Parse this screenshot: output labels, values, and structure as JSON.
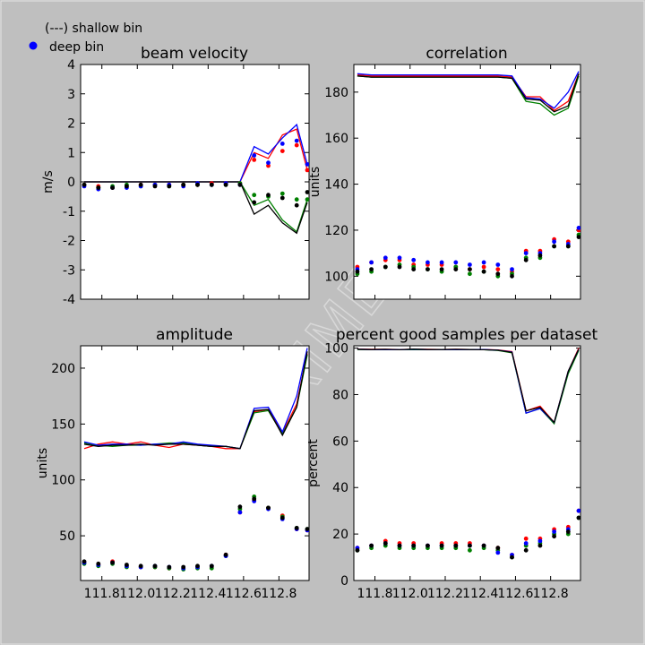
{
  "legend": {
    "shallow_label": "(---) shallow bin",
    "deep_label": "deep bin",
    "deep_marker_color": "#0000ff"
  },
  "watermark": "EXPERIMENTAL",
  "colors": {
    "beam1": "#ff0000",
    "beam2": "#008000",
    "beam3": "#0000ff",
    "beam4": "#000000"
  },
  "x_tick_labels": [
    "111.8",
    "112.0",
    "112.2",
    "112.4",
    "112.6",
    "112.8"
  ],
  "chart_data": [
    {
      "type": "line",
      "title": "beam velocity",
      "ylabel": "m/s",
      "xlim": [
        111.68,
        112.97
      ],
      "ylim": [
        -4,
        4
      ],
      "yticks": [
        -4,
        -3,
        -2,
        -1,
        0,
        1,
        2,
        3,
        4
      ],
      "xticks": [
        111.8,
        112.0,
        112.2,
        112.4,
        112.6,
        112.8
      ],
      "x": [
        111.7,
        111.78,
        111.86,
        111.94,
        112.02,
        112.1,
        112.18,
        112.26,
        112.34,
        112.42,
        112.5,
        112.58,
        112.66,
        112.74,
        112.82,
        112.9,
        112.96
      ],
      "series": [
        {
          "bin": "shallow",
          "beam": "beam1",
          "values": [
            0,
            0,
            0,
            0,
            0,
            0,
            0,
            0,
            0,
            0,
            0,
            0,
            1.0,
            0.8,
            1.6,
            1.8,
            0.4
          ]
        },
        {
          "bin": "shallow",
          "beam": "beam2",
          "values": [
            0,
            0,
            0,
            0,
            0,
            0,
            0,
            0,
            0,
            0,
            0,
            0,
            -0.8,
            -0.6,
            -1.3,
            -1.7,
            -0.6
          ]
        },
        {
          "bin": "shallow",
          "beam": "beam3",
          "values": [
            0,
            0,
            0,
            0,
            0,
            0,
            0,
            0,
            0,
            0,
            0,
            0,
            1.2,
            0.95,
            1.5,
            1.95,
            0.6
          ]
        },
        {
          "bin": "shallow",
          "beam": "beam4",
          "values": [
            0,
            0,
            0,
            0,
            0,
            0,
            0,
            0,
            0,
            0,
            0,
            0,
            -1.1,
            -0.8,
            -1.4,
            -1.75,
            -0.7
          ]
        },
        {
          "bin": "deep",
          "beam": "beam1",
          "values": [
            -0.1,
            -0.15,
            -0.2,
            -0.15,
            -0.1,
            -0.1,
            -0.1,
            -0.1,
            -0.1,
            -0.05,
            -0.05,
            -0.05,
            0.75,
            0.55,
            1.05,
            1.25,
            0.4
          ]
        },
        {
          "bin": "deep",
          "beam": "beam2",
          "values": [
            -0.1,
            -0.2,
            -0.15,
            -0.1,
            -0.15,
            -0.1,
            -0.15,
            -0.1,
            -0.1,
            -0.1,
            -0.1,
            -0.05,
            -0.45,
            -0.5,
            -0.4,
            -0.6,
            -0.6
          ]
        },
        {
          "bin": "deep",
          "beam": "beam3",
          "values": [
            -0.15,
            -0.25,
            -0.2,
            -0.2,
            -0.15,
            -0.1,
            -0.1,
            -0.15,
            -0.05,
            -0.1,
            -0.05,
            -0.1,
            0.9,
            0.65,
            1.3,
            1.4,
            0.6
          ]
        },
        {
          "bin": "deep",
          "beam": "beam4",
          "values": [
            -0.1,
            -0.2,
            -0.2,
            -0.15,
            -0.1,
            -0.15,
            -0.15,
            -0.1,
            -0.1,
            -0.1,
            -0.1,
            -0.1,
            -0.7,
            -0.45,
            -0.55,
            -0.8,
            -0.35
          ]
        }
      ]
    },
    {
      "type": "line",
      "title": "correlation",
      "ylabel": "units",
      "xlim": [
        111.68,
        112.97
      ],
      "ylim": [
        90,
        192
      ],
      "yticks": [
        100,
        120,
        140,
        160,
        180
      ],
      "xticks": [
        111.8,
        112.0,
        112.2,
        112.4,
        112.6,
        112.8
      ],
      "x": [
        111.7,
        111.78,
        111.86,
        111.94,
        112.02,
        112.1,
        112.18,
        112.26,
        112.34,
        112.42,
        112.5,
        112.58,
        112.66,
        112.74,
        112.82,
        112.9,
        112.96
      ],
      "series": [
        {
          "bin": "shallow",
          "beam": "beam1",
          "values": [
            187.5,
            187,
            187,
            187,
            187,
            187,
            187,
            187,
            187,
            187,
            187,
            186.5,
            178,
            178,
            172,
            176,
            188
          ]
        },
        {
          "bin": "shallow",
          "beam": "beam2",
          "values": [
            187,
            186.5,
            186.5,
            186.5,
            186.5,
            186.5,
            186.5,
            186.5,
            186.5,
            186.5,
            186.5,
            186,
            176,
            175,
            170,
            173,
            187
          ]
        },
        {
          "bin": "shallow",
          "beam": "beam3",
          "values": [
            188,
            187.5,
            187.5,
            187.5,
            187.5,
            187.5,
            187.5,
            187.5,
            187.5,
            187.5,
            187.5,
            187,
            177.5,
            177,
            173,
            180,
            189
          ]
        },
        {
          "bin": "shallow",
          "beam": "beam4",
          "values": [
            187,
            186.5,
            186.5,
            186.5,
            186.5,
            186.5,
            186.5,
            186.5,
            186.5,
            186.5,
            186.5,
            186,
            177,
            176.5,
            171.5,
            174,
            188
          ]
        },
        {
          "bin": "deep",
          "beam": "beam1",
          "values": [
            104,
            106,
            107,
            107,
            105,
            105,
            105,
            104,
            103,
            104,
            103,
            102,
            111,
            111,
            116,
            115,
            120
          ]
        },
        {
          "bin": "deep",
          "beam": "beam2",
          "values": [
            101,
            102,
            104,
            105,
            104,
            103,
            102,
            104,
            101,
            102,
            100,
            101,
            108,
            108,
            113,
            113,
            118
          ]
        },
        {
          "bin": "deep",
          "beam": "beam3",
          "values": [
            103,
            106,
            108,
            108,
            107,
            106,
            106,
            106,
            105,
            106,
            105,
            103,
            110,
            110,
            115,
            114,
            121
          ]
        },
        {
          "bin": "deep",
          "beam": "beam4",
          "values": [
            102,
            103,
            104,
            104,
            103,
            103,
            103,
            103,
            103,
            102,
            101,
            100,
            107,
            109,
            113,
            113,
            117
          ]
        }
      ]
    },
    {
      "type": "line",
      "title": "amplitude",
      "ylabel": "units",
      "xlim": [
        111.68,
        112.97
      ],
      "ylim": [
        10,
        220
      ],
      "yticks": [
        50,
        100,
        150,
        200
      ],
      "xticks": [
        111.8,
        112.0,
        112.2,
        112.4,
        112.6,
        112.8
      ],
      "x": [
        111.7,
        111.78,
        111.86,
        111.94,
        112.02,
        112.1,
        112.18,
        112.26,
        112.34,
        112.42,
        112.5,
        112.58,
        112.66,
        112.74,
        112.82,
        112.9,
        112.96
      ],
      "series": [
        {
          "bin": "shallow",
          "beam": "beam1",
          "values": [
            128,
            132,
            134,
            132,
            134,
            131,
            129,
            132,
            131,
            130,
            128,
            128,
            161,
            163,
            142,
            168,
            213
          ]
        },
        {
          "bin": "shallow",
          "beam": "beam2",
          "values": [
            133,
            131,
            130,
            131,
            131,
            132,
            133,
            133,
            131,
            130,
            130,
            128,
            160,
            162,
            141,
            165,
            212
          ]
        },
        {
          "bin": "shallow",
          "beam": "beam3",
          "values": [
            134,
            131,
            132,
            132,
            131,
            132,
            132,
            134,
            132,
            131,
            130,
            128,
            164,
            165,
            143,
            175,
            218
          ]
        },
        {
          "bin": "shallow",
          "beam": "beam4",
          "values": [
            132,
            130,
            131,
            131,
            132,
            131,
            132,
            132,
            131,
            130,
            130,
            128,
            162,
            163,
            140,
            165,
            215
          ]
        },
        {
          "bin": "deep",
          "beam": "beam1",
          "values": [
            26,
            24,
            27,
            23,
            22,
            22,
            21,
            21,
            22,
            22,
            33,
            71,
            82,
            75,
            68,
            56,
            55
          ]
        },
        {
          "bin": "deep",
          "beam": "beam2",
          "values": [
            25,
            23,
            25,
            22,
            22,
            22,
            21,
            20,
            21,
            21,
            32,
            74,
            85,
            75,
            67,
            57,
            56
          ]
        },
        {
          "bin": "deep",
          "beam": "beam3",
          "values": [
            26,
            24,
            26,
            23,
            22,
            23,
            22,
            21,
            22,
            23,
            32,
            71,
            81,
            74,
            65,
            56,
            55
          ]
        },
        {
          "bin": "deep",
          "beam": "beam4",
          "values": [
            27,
            25,
            26,
            24,
            23,
            23,
            22,
            22,
            23,
            23,
            33,
            76,
            83,
            75,
            66,
            57,
            56
          ]
        }
      ]
    },
    {
      "type": "line",
      "title": "percent good samples per dataset",
      "ylabel": "percent",
      "xlim": [
        111.68,
        112.97
      ],
      "ylim": [
        0,
        101
      ],
      "yticks": [
        0,
        20,
        40,
        60,
        80,
        100
      ],
      "xticks": [
        111.8,
        112.0,
        112.2,
        112.4,
        112.6,
        112.8
      ],
      "x": [
        111.7,
        111.78,
        111.86,
        111.94,
        112.02,
        112.1,
        112.18,
        112.26,
        112.34,
        112.42,
        112.5,
        112.58,
        112.66,
        112.74,
        112.82,
        112.9,
        112.96
      ],
      "series": [
        {
          "bin": "shallow",
          "beam": "beam1",
          "values": [
            99.6,
            99.5,
            99.5,
            99.4,
            99.5,
            99.5,
            99.4,
            99.5,
            99.4,
            99.4,
            99.2,
            98.5,
            73,
            75,
            68,
            90,
            100
          ]
        },
        {
          "bin": "shallow",
          "beam": "beam2",
          "values": [
            99.4,
            99.3,
            99.4,
            99.3,
            99.4,
            99.3,
            99.3,
            99.3,
            99.3,
            99.3,
            99,
            98,
            72,
            74,
            67.5,
            89,
            99
          ]
        },
        {
          "bin": "shallow",
          "beam": "beam3",
          "values": [
            99.5,
            99.4,
            99.4,
            99.3,
            99.5,
            99.4,
            99.4,
            99.4,
            99.4,
            99.4,
            99.1,
            98.3,
            72,
            74,
            68,
            90,
            99.5
          ]
        },
        {
          "bin": "shallow",
          "beam": "beam4",
          "values": [
            99.5,
            99.4,
            99.5,
            99.3,
            99.6,
            99.4,
            99.4,
            99.5,
            99.4,
            99.3,
            99.1,
            98.2,
            73,
            74.5,
            68,
            90,
            99.5
          ]
        },
        {
          "bin": "deep",
          "beam": "beam1",
          "values": [
            14,
            15,
            17,
            16,
            16,
            15,
            16,
            16,
            16,
            15,
            14,
            11,
            18,
            18,
            22,
            23,
            30
          ]
        },
        {
          "bin": "deep",
          "beam": "beam2",
          "values": [
            13,
            14,
            15,
            14,
            14,
            14,
            14,
            14,
            13,
            14,
            13,
            10,
            15,
            16,
            20,
            20,
            27
          ]
        },
        {
          "bin": "deep",
          "beam": "beam3",
          "values": [
            14,
            15,
            16,
            15,
            15,
            15,
            15,
            15,
            15,
            15,
            12,
            11,
            16,
            17,
            21,
            22,
            30
          ]
        },
        {
          "bin": "deep",
          "beam": "beam4",
          "values": [
            13,
            15,
            16,
            15,
            15,
            15,
            15,
            15,
            15,
            15,
            14,
            10,
            13,
            15,
            19,
            21,
            27
          ]
        }
      ]
    }
  ]
}
